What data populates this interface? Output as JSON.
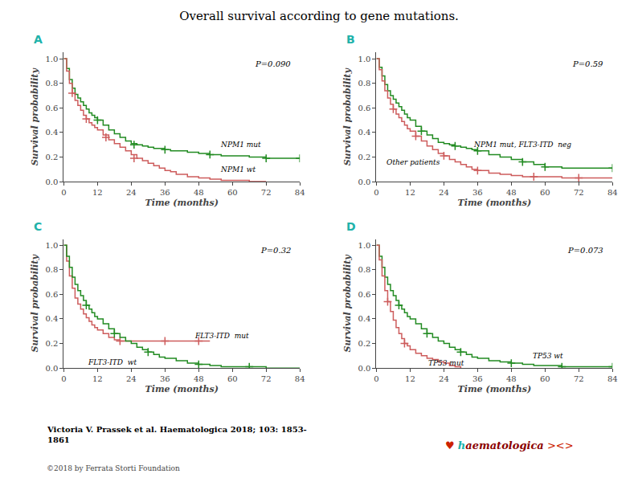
{
  "title": "Overall survival according to gene mutations.",
  "panel_label_color": "#20B2AA",
  "citation": "Victoria V. Prassek et al. Haematologica 2018; 103: 1853-\n1861",
  "footer": {
    "text": "©2018 by Ferrata Storti Foundation",
    "color": "#444444"
  },
  "logo": [
    {
      "text": "♥",
      "color": "#cc2200"
    },
    {
      "text": "h",
      "color": "#20B2AA"
    },
    {
      "text": "aematologica",
      "color": "#8B0000"
    },
    {
      "text": "><>",
      "color": "#cc2200"
    }
  ],
  "chart_data": [
    {
      "type": "line",
      "title": "A",
      "annotations": [
        "P=0.090"
      ],
      "xlabel": "Time (months)",
      "ylabel": "Survival probability",
      "xlim": [
        0,
        84
      ],
      "ylim": [
        0.0,
        1.05
      ],
      "xticks": [
        0,
        12,
        24,
        36,
        48,
        60,
        72,
        84
      ],
      "yticks": [
        {
          "value": 0.0,
          "label": "0.0"
        },
        0.2,
        0.4,
        0.6,
        0.8,
        {
          "value": 1.0,
          "label": "1.0"
        }
      ],
      "grid": false,
      "legend": false,
      "series": [
        {
          "name": "NPM1 mut",
          "color": "#228B22",
          "label_x": 55,
          "label_y": 0.3,
          "x": [
            0,
            1,
            2,
            3,
            4,
            5,
            6,
            7,
            8,
            9,
            10,
            11,
            12,
            14,
            16,
            18,
            20,
            22,
            24,
            26,
            28,
            30,
            32,
            34,
            36,
            38,
            40,
            42,
            44,
            48,
            52,
            56,
            60,
            66,
            72,
            78,
            84
          ],
          "values": [
            1.0,
            0.92,
            0.83,
            0.76,
            0.71,
            0.68,
            0.65,
            0.62,
            0.59,
            0.56,
            0.54,
            0.52,
            0.5,
            0.46,
            0.42,
            0.39,
            0.36,
            0.33,
            0.31,
            0.3,
            0.29,
            0.28,
            0.27,
            0.27,
            0.26,
            0.25,
            0.25,
            0.25,
            0.24,
            0.23,
            0.22,
            0.21,
            0.21,
            0.2,
            0.19,
            0.19,
            0.19
          ],
          "censor_x": [
            12,
            25,
            36,
            52,
            72,
            84
          ],
          "censor_values": [
            0.5,
            0.3,
            0.26,
            0.22,
            0.19,
            0.19
          ]
        },
        {
          "name": "NPM1 wt",
          "color": "#cd5c5c",
          "label_x": 55,
          "label_y": 0.1,
          "x": [
            0,
            1,
            2,
            3,
            4,
            5,
            6,
            7,
            8,
            9,
            10,
            11,
            12,
            14,
            16,
            18,
            20,
            22,
            24,
            26,
            28,
            30,
            32,
            34,
            36,
            38,
            40,
            44,
            48,
            52,
            56,
            60,
            66,
            72
          ],
          "values": [
            1.0,
            0.9,
            0.8,
            0.72,
            0.66,
            0.62,
            0.58,
            0.54,
            0.51,
            0.48,
            0.46,
            0.44,
            0.42,
            0.38,
            0.34,
            0.31,
            0.28,
            0.25,
            0.22,
            0.19,
            0.17,
            0.15,
            0.13,
            0.11,
            0.09,
            0.08,
            0.06,
            0.04,
            0.03,
            0.02,
            0.01,
            0.01,
            0.0,
            0.0
          ],
          "censor_x": [
            3,
            8,
            15,
            25
          ],
          "censor_values": [
            0.72,
            0.51,
            0.36,
            0.19
          ]
        }
      ]
    },
    {
      "type": "line",
      "title": "B",
      "annotations": [
        "P=0.59"
      ],
      "xlabel": "Time (months)",
      "ylabel": "Survival probability",
      "xlim": [
        0,
        84
      ],
      "ylim": [
        0.0,
        1.05
      ],
      "xticks": [
        0,
        12,
        24,
        36,
        48,
        60,
        72,
        84
      ],
      "yticks": [
        {
          "value": 0.0,
          "label": "0.0"
        },
        0.2,
        0.4,
        0.6,
        0.8,
        {
          "value": 1.0,
          "label": "1.0"
        }
      ],
      "grid": false,
      "legend": false,
      "series": [
        {
          "name": "NPM1 mut, FLT3-ITD  neg",
          "color": "#228B22",
          "label_x": 34,
          "label_y": 0.3,
          "x": [
            0,
            1,
            2,
            3,
            4,
            5,
            6,
            7,
            8,
            9,
            10,
            11,
            12,
            14,
            16,
            18,
            20,
            22,
            24,
            26,
            28,
            30,
            32,
            34,
            36,
            40,
            44,
            48,
            52,
            56,
            60,
            66,
            72,
            78,
            84
          ],
          "values": [
            1.0,
            0.93,
            0.86,
            0.79,
            0.74,
            0.7,
            0.67,
            0.64,
            0.61,
            0.58,
            0.55,
            0.52,
            0.5,
            0.45,
            0.41,
            0.38,
            0.35,
            0.32,
            0.31,
            0.3,
            0.29,
            0.28,
            0.27,
            0.26,
            0.25,
            0.22,
            0.2,
            0.18,
            0.16,
            0.14,
            0.12,
            0.11,
            0.11,
            0.11,
            0.11
          ],
          "censor_x": [
            16,
            28,
            36,
            52,
            60,
            84
          ],
          "censor_values": [
            0.41,
            0.29,
            0.25,
            0.16,
            0.12,
            0.11
          ]
        },
        {
          "name": "Other patients",
          "color": "#cd5c5c",
          "label_x": 3,
          "label_y": 0.16,
          "x": [
            0,
            1,
            2,
            3,
            4,
            5,
            6,
            7,
            8,
            9,
            10,
            11,
            12,
            14,
            16,
            18,
            20,
            22,
            24,
            26,
            28,
            30,
            32,
            34,
            36,
            40,
            44,
            48,
            52,
            56,
            60,
            66,
            72,
            78,
            84
          ],
          "values": [
            1.0,
            0.91,
            0.82,
            0.74,
            0.68,
            0.63,
            0.59,
            0.55,
            0.52,
            0.49,
            0.46,
            0.43,
            0.41,
            0.37,
            0.33,
            0.29,
            0.26,
            0.23,
            0.21,
            0.18,
            0.16,
            0.14,
            0.12,
            0.1,
            0.09,
            0.07,
            0.06,
            0.05,
            0.04,
            0.04,
            0.04,
            0.03,
            0.03,
            0.03,
            0.03
          ],
          "censor_x": [
            6,
            14,
            24,
            36,
            56,
            72
          ],
          "censor_values": [
            0.59,
            0.37,
            0.21,
            0.09,
            0.04,
            0.03
          ]
        }
      ]
    },
    {
      "type": "line",
      "title": "C",
      "annotations": [
        "P=0.32"
      ],
      "xlabel": "Time (months)",
      "ylabel": "Survival probability",
      "xlim": [
        0,
        84
      ],
      "ylim": [
        0.0,
        1.05
      ],
      "xticks": [
        0,
        12,
        24,
        36,
        48,
        60,
        72,
        84
      ],
      "yticks": [
        {
          "value": 0.0,
          "label": "0.0"
        },
        0.2,
        0.4,
        0.6,
        0.8,
        {
          "value": 1.0,
          "label": "1.0"
        }
      ],
      "grid": false,
      "legend": false,
      "series": [
        {
          "name": "FLT3-ITD  mut",
          "color": "#cd5c5c",
          "label_x": 46,
          "label_y": 0.26,
          "x": [
            0,
            1,
            2,
            3,
            4,
            5,
            6,
            7,
            8,
            9,
            10,
            11,
            12,
            14,
            16,
            18,
            20,
            22,
            24,
            26,
            28,
            30,
            32,
            34,
            36,
            40,
            44,
            48,
            52
          ],
          "values": [
            1.0,
            0.87,
            0.75,
            0.65,
            0.57,
            0.52,
            0.48,
            0.44,
            0.41,
            0.38,
            0.35,
            0.33,
            0.31,
            0.28,
            0.25,
            0.23,
            0.22,
            0.22,
            0.22,
            0.22,
            0.22,
            0.22,
            0.22,
            0.22,
            0.22,
            0.22,
            0.22,
            0.22,
            0.22
          ],
          "censor_x": [
            20,
            36,
            48
          ],
          "censor_values": [
            0.22,
            0.22,
            0.22
          ]
        },
        {
          "name": "FLT3-ITD  wt",
          "color": "#228B22",
          "label_x": 8,
          "label_y": 0.05,
          "x": [
            0,
            1,
            2,
            3,
            4,
            5,
            6,
            7,
            8,
            9,
            10,
            11,
            12,
            14,
            16,
            18,
            20,
            22,
            24,
            26,
            28,
            30,
            32,
            34,
            36,
            40,
            44,
            48,
            52,
            56,
            60,
            66,
            72,
            78,
            84
          ],
          "values": [
            1.0,
            0.91,
            0.82,
            0.74,
            0.68,
            0.63,
            0.59,
            0.55,
            0.51,
            0.48,
            0.45,
            0.42,
            0.4,
            0.36,
            0.32,
            0.28,
            0.25,
            0.22,
            0.2,
            0.17,
            0.15,
            0.13,
            0.11,
            0.09,
            0.08,
            0.06,
            0.04,
            0.03,
            0.02,
            0.01,
            0.01,
            0.01,
            0.0,
            0.0,
            0.0
          ],
          "censor_x": [
            8,
            18,
            30,
            48,
            66
          ],
          "censor_values": [
            0.51,
            0.28,
            0.13,
            0.03,
            0.01
          ]
        }
      ]
    },
    {
      "type": "line",
      "title": "D",
      "annotations": [
        "P=0.073"
      ],
      "xlabel": "Time (months)",
      "ylabel": "Survival probability",
      "xlim": [
        0,
        84
      ],
      "ylim": [
        0.0,
        1.05
      ],
      "xticks": [
        0,
        12,
        24,
        36,
        48,
        60,
        72,
        84
      ],
      "yticks": [
        {
          "value": 0.0,
          "label": "0.0"
        },
        0.2,
        0.4,
        0.6,
        0.8,
        {
          "value": 1.0,
          "label": "1.0"
        }
      ],
      "grid": false,
      "legend": false,
      "series": [
        {
          "name": "TP53 wt",
          "color": "#228B22",
          "label_x": 55,
          "label_y": 0.1,
          "x": [
            0,
            1,
            2,
            3,
            4,
            5,
            6,
            7,
            8,
            9,
            10,
            11,
            12,
            14,
            16,
            18,
            20,
            22,
            24,
            26,
            28,
            30,
            32,
            34,
            36,
            40,
            44,
            48,
            52,
            56,
            60,
            66,
            72,
            78,
            84
          ],
          "values": [
            1.0,
            0.91,
            0.82,
            0.74,
            0.68,
            0.63,
            0.59,
            0.55,
            0.51,
            0.48,
            0.45,
            0.42,
            0.4,
            0.36,
            0.32,
            0.28,
            0.25,
            0.22,
            0.2,
            0.17,
            0.15,
            0.13,
            0.11,
            0.09,
            0.08,
            0.06,
            0.05,
            0.04,
            0.03,
            0.02,
            0.02,
            0.01,
            0.01,
            0.01,
            0.01
          ],
          "censor_x": [
            8,
            18,
            30,
            48,
            66,
            84
          ],
          "censor_values": [
            0.51,
            0.28,
            0.13,
            0.04,
            0.01,
            0.01
          ]
        },
        {
          "name": "TP53 mut",
          "color": "#cd5c5c",
          "label_x": 18,
          "label_y": 0.04,
          "x": [
            0,
            1,
            2,
            3,
            4,
            5,
            6,
            7,
            8,
            9,
            10,
            11,
            12,
            14,
            16,
            18,
            20,
            22,
            24,
            26,
            28,
            30
          ],
          "values": [
            1.0,
            0.88,
            0.75,
            0.63,
            0.54,
            0.46,
            0.39,
            0.33,
            0.28,
            0.24,
            0.2,
            0.18,
            0.15,
            0.12,
            0.1,
            0.08,
            0.07,
            0.05,
            0.04,
            0.02,
            0.01,
            0.0
          ],
          "censor_x": [
            4,
            10
          ],
          "censor_values": [
            0.54,
            0.2
          ]
        }
      ]
    }
  ]
}
